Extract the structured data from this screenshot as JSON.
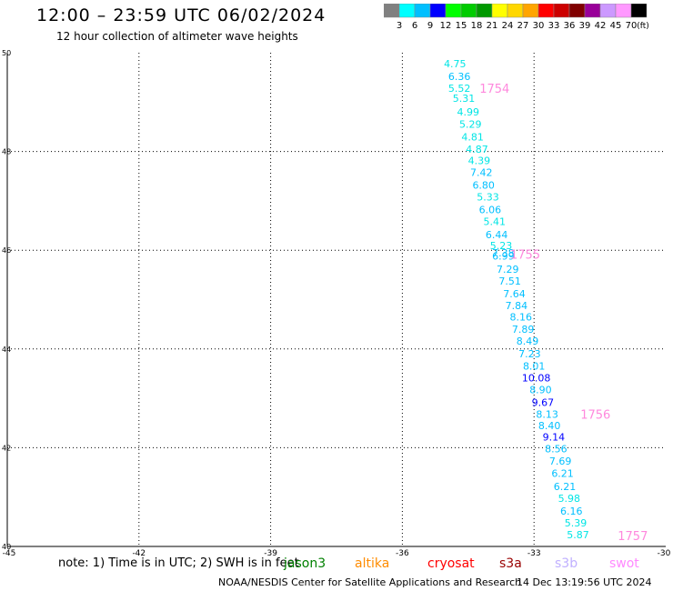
{
  "title": "12:00 – 23:59 UTC 06/02/2024",
  "subtitle": "12 hour collection of altimeter wave heights",
  "colorbar": {
    "unit": "(ft)",
    "ticks": [
      "3",
      "6",
      "9",
      "12",
      "15",
      "18",
      "21",
      "24",
      "27",
      "30",
      "33",
      "36",
      "39",
      "42",
      "45",
      "70"
    ],
    "colors": [
      "#808080",
      "#00ffff",
      "#00bfff",
      "#0000ff",
      "#00ff00",
      "#00cc00",
      "#009900",
      "#ffff00",
      "#ffd700",
      "#ffa500",
      "#ff0000",
      "#cc0000",
      "#800000",
      "#990099",
      "#cc99ff",
      "#ff99ff",
      "#000000"
    ]
  },
  "footer": {
    "note": "note:  1) Time is in UTC; 2) SWH is in feet",
    "credit": "NOAA/NESDIS Center for Satellite Applications and Research",
    "timestamp": "14 Dec 13:19:56 UTC 2024",
    "missions": [
      {
        "name": "jason3",
        "color": "#008000"
      },
      {
        "name": "altika",
        "color": "#ff8c00"
      },
      {
        "name": "cryosat",
        "color": "#ff0000"
      },
      {
        "name": "s3a",
        "color": "#990000"
      },
      {
        "name": "s3b",
        "color": "#c0b0ff"
      },
      {
        "name": "swot",
        "color": "#ff88ff"
      }
    ]
  },
  "chart_data": {
    "type": "scatter",
    "xlim": [
      -45,
      -30
    ],
    "ylim": [
      40,
      50
    ],
    "x_ticks": [
      "-45",
      "-42",
      "-39",
      "-36",
      "-33",
      "-30"
    ],
    "y_ticks": [
      "40",
      "42",
      "44",
      "46",
      "48",
      "50"
    ],
    "grid": true,
    "points": [
      {
        "lat": 49.78,
        "lon": -34.8,
        "swh": "4.75",
        "color": "#00e5e5"
      },
      {
        "lat": 49.52,
        "lon": -34.7,
        "swh": "6.36",
        "color": "#00bfff"
      },
      {
        "lat": 49.28,
        "lon": -34.7,
        "swh": "5.52",
        "color": "#00e5e5"
      },
      {
        "lat": 49.08,
        "lon": -34.6,
        "swh": "5.31",
        "color": "#00e5e5"
      },
      {
        "lat": 48.8,
        "lon": -34.5,
        "swh": "4.99",
        "color": "#00e5e5"
      },
      {
        "lat": 48.55,
        "lon": -34.45,
        "swh": "5.29",
        "color": "#00e5e5"
      },
      {
        "lat": 48.3,
        "lon": -34.4,
        "swh": "4.81",
        "color": "#00e5e5"
      },
      {
        "lat": 48.05,
        "lon": -34.3,
        "swh": "4.87",
        "color": "#00e5e5"
      },
      {
        "lat": 47.82,
        "lon": -34.25,
        "swh": "4.39",
        "color": "#00e5e5"
      },
      {
        "lat": 47.58,
        "lon": -34.2,
        "swh": "7.42",
        "color": "#00bfff"
      },
      {
        "lat": 47.32,
        "lon": -34.15,
        "swh": "6.80",
        "color": "#00bfff"
      },
      {
        "lat": 47.08,
        "lon": -34.05,
        "swh": "5.33",
        "color": "#00e5e5"
      },
      {
        "lat": 46.82,
        "lon": -34.0,
        "swh": "6.06",
        "color": "#00bfff"
      },
      {
        "lat": 46.58,
        "lon": -33.9,
        "swh": "5.41",
        "color": "#00e5e5"
      },
      {
        "lat": 46.32,
        "lon": -33.85,
        "swh": "6.44",
        "color": "#00bfff"
      },
      {
        "lat": 46.1,
        "lon": -33.75,
        "swh": "5.23",
        "color": "#00e5e5"
      },
      {
        "lat": 45.95,
        "lon": -33.7,
        "swh": "7.38",
        "color": "#00bfff"
      },
      {
        "lat": 45.88,
        "lon": -33.7,
        "swh": "6.99",
        "color": "#00bfff"
      },
      {
        "lat": 45.62,
        "lon": -33.6,
        "swh": "7.29",
        "color": "#00bfff"
      },
      {
        "lat": 45.38,
        "lon": -33.55,
        "swh": "7.51",
        "color": "#00bfff"
      },
      {
        "lat": 45.12,
        "lon": -33.45,
        "swh": "7.64",
        "color": "#00bfff"
      },
      {
        "lat": 44.88,
        "lon": -33.4,
        "swh": "7.84",
        "color": "#00bfff"
      },
      {
        "lat": 44.65,
        "lon": -33.3,
        "swh": "8.16",
        "color": "#00bfff"
      },
      {
        "lat": 44.4,
        "lon": -33.25,
        "swh": "7.89",
        "color": "#00bfff"
      },
      {
        "lat": 44.16,
        "lon": -33.15,
        "swh": "8.49",
        "color": "#00bfff"
      },
      {
        "lat": 43.9,
        "lon": -33.1,
        "swh": "7.23",
        "color": "#00bfff"
      },
      {
        "lat": 43.66,
        "lon": -33.0,
        "swh": "8.01",
        "color": "#00bfff"
      },
      {
        "lat": 43.42,
        "lon": -32.95,
        "swh": "10.08",
        "color": "#0000ff"
      },
      {
        "lat": 43.18,
        "lon": -32.85,
        "swh": "8.90",
        "color": "#00bfff"
      },
      {
        "lat": 42.92,
        "lon": -32.8,
        "swh": "9.67",
        "color": "#0000ff"
      },
      {
        "lat": 42.68,
        "lon": -32.7,
        "swh": "8.13",
        "color": "#00bfff"
      },
      {
        "lat": 42.45,
        "lon": -32.65,
        "swh": "8.40",
        "color": "#00bfff"
      },
      {
        "lat": 42.22,
        "lon": -32.55,
        "swh": "9.14",
        "color": "#0000ff"
      },
      {
        "lat": 41.98,
        "lon": -32.5,
        "swh": "8.56",
        "color": "#00bfff"
      },
      {
        "lat": 41.73,
        "lon": -32.4,
        "swh": "7.69",
        "color": "#00bfff"
      },
      {
        "lat": 41.48,
        "lon": -32.35,
        "swh": "6.21",
        "color": "#00bfff"
      },
      {
        "lat": 41.22,
        "lon": -32.3,
        "swh": "6.21",
        "color": "#00bfff"
      },
      {
        "lat": 40.98,
        "lon": -32.2,
        "swh": "5.98",
        "color": "#00e5e5"
      },
      {
        "lat": 40.72,
        "lon": -32.15,
        "swh": "6.16",
        "color": "#00bfff"
      },
      {
        "lat": 40.48,
        "lon": -32.05,
        "swh": "5.39",
        "color": "#00e5e5"
      },
      {
        "lat": 40.24,
        "lon": -32.0,
        "swh": "5.87",
        "color": "#00e5e5"
      }
    ],
    "time_labels": [
      {
        "lat": 49.28,
        "lon": -33.9,
        "text": "1754",
        "color": "#ff88dd"
      },
      {
        "lat": 45.92,
        "lon": -33.2,
        "text": "1755",
        "color": "#ff88dd"
      },
      {
        "lat": 42.68,
        "lon": -31.6,
        "text": "1756",
        "color": "#ff88dd"
      },
      {
        "lat": 40.22,
        "lon": -30.75,
        "text": "1757",
        "color": "#ff88dd"
      }
    ]
  }
}
